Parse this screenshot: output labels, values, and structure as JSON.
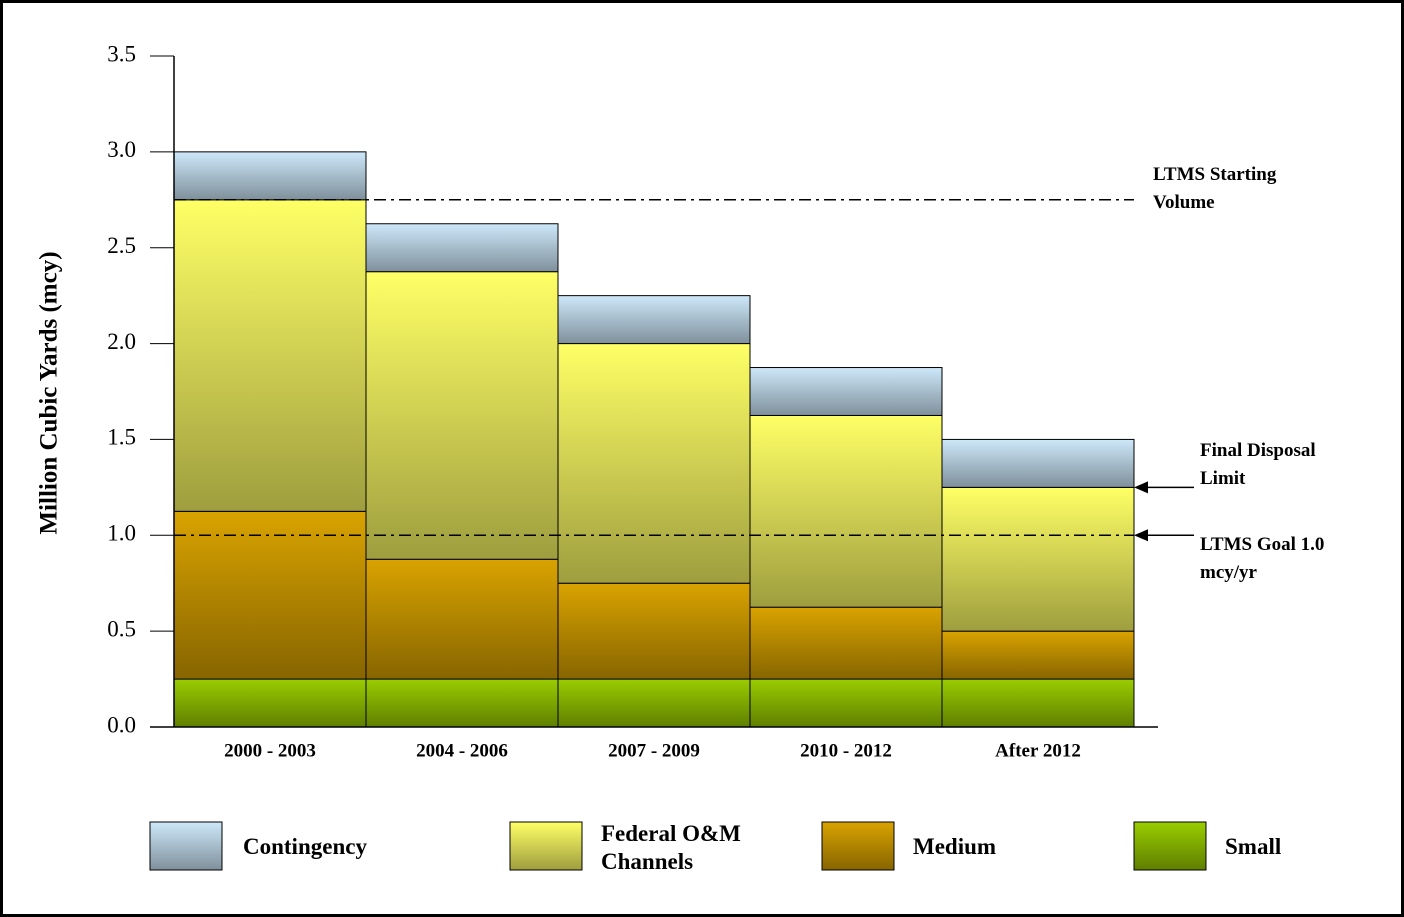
{
  "chart_data": {
    "type": "stacked_bar",
    "y_label": "Million Cubic Yards (mcy)",
    "categories": [
      "2000 - 2003",
      "2004 - 2006",
      "2007 - 2009",
      "2010 - 2012",
      "After 2012"
    ],
    "series": [
      {
        "name": "Small",
        "color": "#9acd00",
        "values": [
          0.25,
          0.25,
          0.25,
          0.25,
          0.25
        ]
      },
      {
        "name": "Medium",
        "color": "#d9a300",
        "values": [
          0.875,
          0.625,
          0.5,
          0.375,
          0.25
        ]
      },
      {
        "name": "Federal O&M Channels",
        "color": "#ffff66",
        "values": [
          1.625,
          1.5,
          1.25,
          1.0,
          0.75
        ]
      },
      {
        "name": "Contingency",
        "color": "#cde8fa",
        "values": [
          0.25,
          0.25,
          0.25,
          0.25,
          0.25
        ]
      }
    ],
    "legend_order": [
      3,
      2,
      1,
      0
    ],
    "ylim": [
      0,
      3.5
    ],
    "yticks": [
      {
        "value": 0,
        "label": "0.0"
      },
      0.5,
      {
        "value": 1,
        "label": "1.0"
      },
      1.5,
      {
        "value": 2,
        "label": "2.0"
      },
      2.5,
      {
        "value": 3,
        "label": "3.0"
      },
      3.5
    ],
    "annotations": [
      {
        "text": "LTMS Starting Volume",
        "value": 2.75,
        "line": true,
        "arrow": false
      },
      {
        "text": "Final Disposal Limit",
        "value": 1.25,
        "line": false,
        "arrow": true
      },
      {
        "text": "LTMS Goal 1.0 mcy/yr",
        "value": 1,
        "line": true,
        "arrow": true
      }
    ]
  }
}
